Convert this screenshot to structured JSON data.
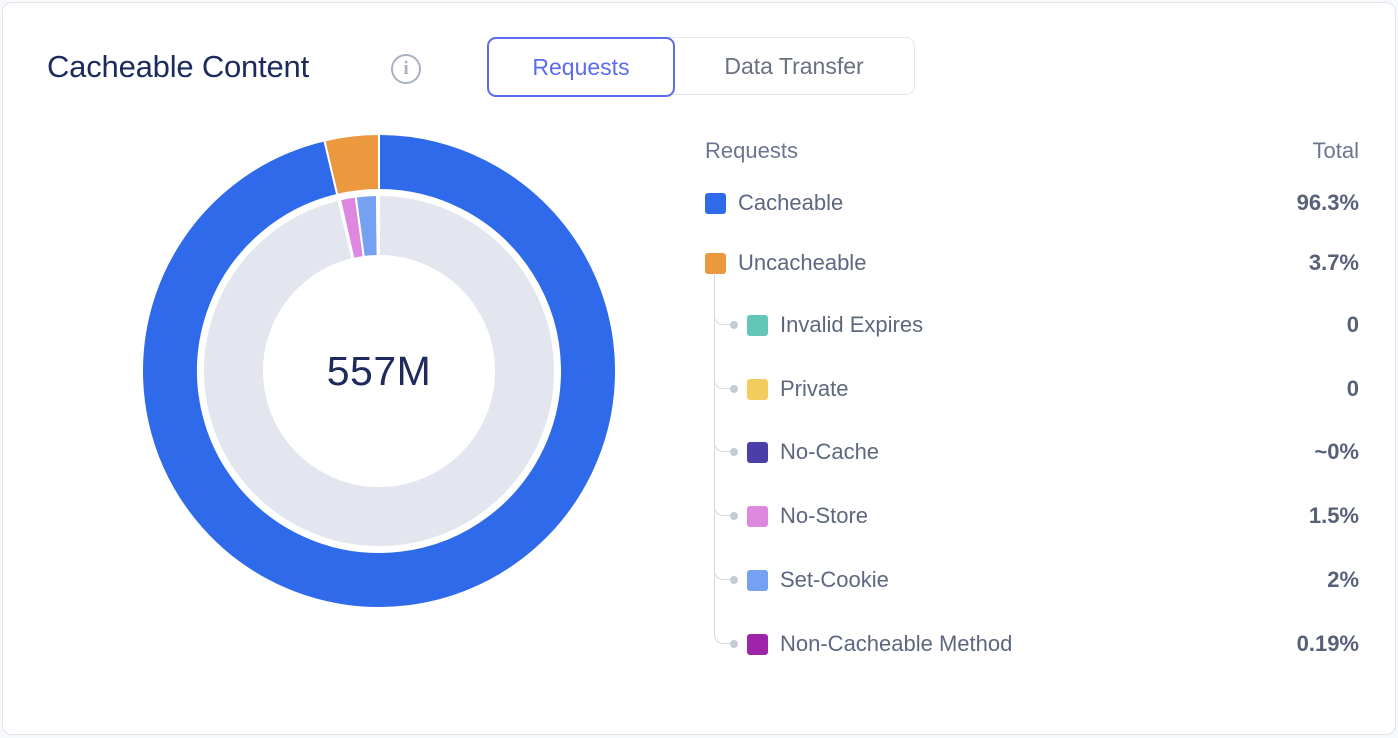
{
  "header": {
    "title": "Cacheable Content",
    "info_icon_glyph": "i",
    "toggle": {
      "options": [
        "Requests",
        "Data Transfer"
      ],
      "selected": "Requests"
    }
  },
  "legend": {
    "metric_column_label": "Requests",
    "total_column_label": "Total",
    "rows": [
      {
        "label": "Cacheable",
        "total": "96.3%",
        "color": "#2e6ae9",
        "indent": false
      },
      {
        "label": "Uncacheable",
        "total": "3.7%",
        "color": "#eb983e",
        "indent": false
      },
      {
        "label": "Invalid Expires",
        "total": "0",
        "color": "#63c6b9",
        "indent": true
      },
      {
        "label": "Private",
        "total": "0",
        "color": "#f5cc5f",
        "indent": true
      },
      {
        "label": "No-Cache",
        "total": "~0%",
        "color": "#4b3ea6",
        "indent": true
      },
      {
        "label": "No-Store",
        "total": "1.5%",
        "color": "#de87de",
        "indent": true
      },
      {
        "label": "Set-Cookie",
        "total": "2%",
        "color": "#76a1f3",
        "indent": true
      },
      {
        "label": "Non-Cacheable Method",
        "total": "0.19%",
        "color": "#9d23a9",
        "indent": true
      }
    ]
  },
  "chart_data": {
    "type": "pie",
    "title": "Cacheable Content",
    "metric": "Requests",
    "center_label": "557M",
    "legend_position": "right",
    "outer_ring": [
      {
        "name": "Cacheable",
        "pct": 96.3,
        "color": "#2e6ae9"
      },
      {
        "name": "Uncacheable",
        "pct": 3.7,
        "color": "#eb983e"
      }
    ],
    "inner_ring": [
      {
        "name": "Cacheable (remainder)",
        "pct": 96.3,
        "color": "#e3e6ef"
      },
      {
        "name": "Invalid Expires",
        "pct": 0,
        "color": "#63c6b9"
      },
      {
        "name": "Private",
        "pct": 0,
        "color": "#f5cc5f"
      },
      {
        "name": "No-Cache",
        "pct": 0.04,
        "color": "#4b3ea6"
      },
      {
        "name": "No-Store",
        "pct": 1.5,
        "color": "#de87de"
      },
      {
        "name": "Set-Cookie",
        "pct": 2,
        "color": "#76a1f3"
      },
      {
        "name": "Non-Cacheable Method",
        "pct": 0.19,
        "color": "#9d23a9"
      }
    ]
  }
}
